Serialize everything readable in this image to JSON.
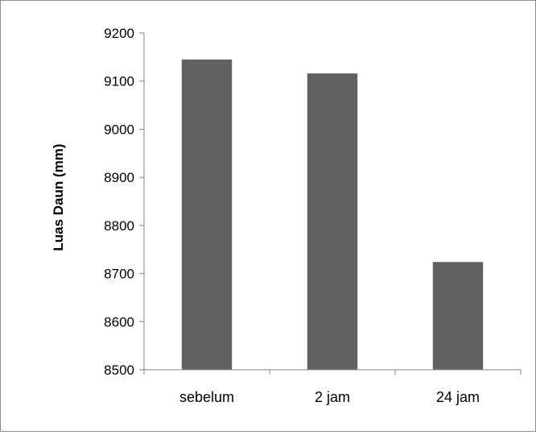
{
  "chart_data": {
    "type": "bar",
    "title": "",
    "xlabel": "",
    "ylabel": "Luas Daun (mm)",
    "categories": [
      "sebelum",
      "2 jam",
      "24 jam"
    ],
    "values": [
      9145,
      9116,
      8724
    ],
    "ylim": [
      8500,
      9200
    ],
    "yticks": [
      8500,
      8600,
      8700,
      8800,
      8900,
      9000,
      9100,
      9200
    ],
    "ytick_labels": [
      "8500",
      "8600",
      "8700",
      "8800",
      "8900",
      "9000",
      "9100",
      "9200"
    ],
    "grid": false,
    "legend": "none",
    "bar_color": "#616161",
    "axis_color": "#868686"
  }
}
